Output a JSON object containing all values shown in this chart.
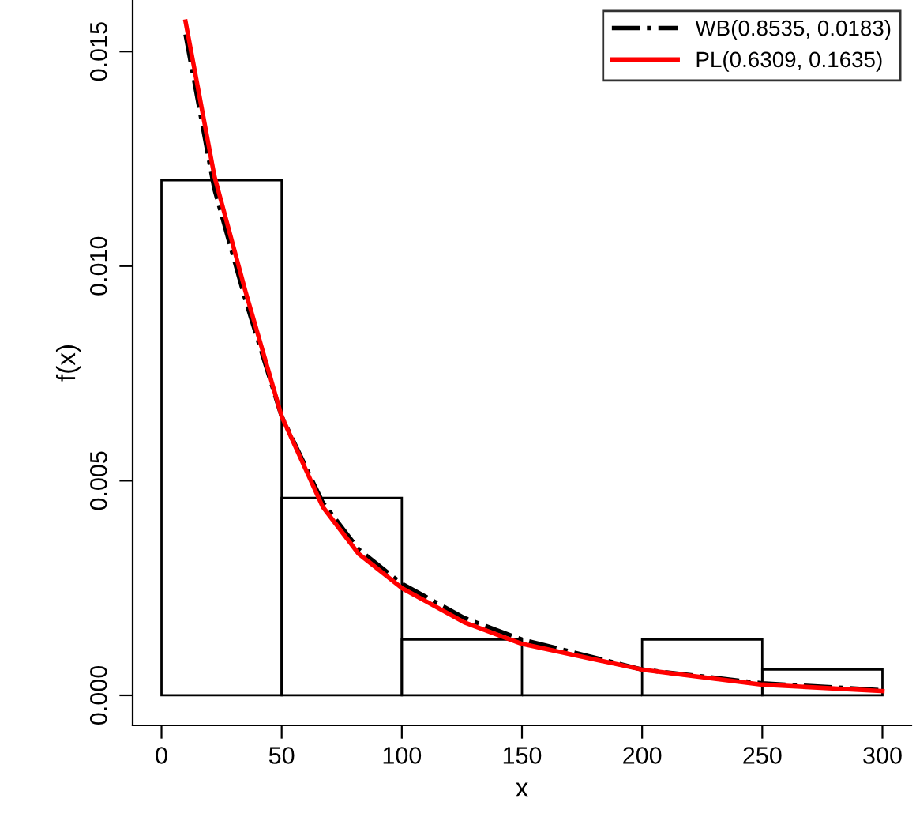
{
  "chart_data": {
    "type": "histogram",
    "xlabel": "x",
    "ylabel": "f(x)",
    "bins": [
      0,
      50,
      100,
      150,
      200,
      250,
      300
    ],
    "values": [
      0.012,
      0.0046,
      0.0013,
      0,
      0.0013,
      0.0006
    ],
    "color": "#000000",
    "xlim": [
      -12,
      312
    ],
    "ylim": [
      -0.0007,
      0.0162
    ],
    "xticks": [
      0,
      50,
      100,
      150,
      200,
      250,
      300
    ],
    "yticks": [
      {
        "value": 0,
        "label": "0.000"
      },
      {
        "value": 0.005,
        "label": "0.005"
      },
      {
        "value": 0.01,
        "label": "0.010"
      },
      {
        "value": 0.015,
        "label": "0.015"
      }
    ],
    "series": [
      {
        "name": "WB(0.8535, 0.0183)",
        "type": "line",
        "color": "#000000",
        "line_style": "dashdot",
        "x": [
          10,
          22,
          35,
          50,
          67,
          82,
          100,
          126,
          150,
          200,
          250,
          300
        ],
        "values": [
          0.0154,
          0.0118,
          0.0092,
          0.0065,
          0.0045,
          0.0034,
          0.0026,
          0.0018,
          0.0013,
          0.0006,
          0.00028,
          0.00012
        ]
      },
      {
        "name": "PL(0.6309, 0.1635)",
        "type": "line",
        "color": "#ff0000",
        "line_style": "solid",
        "x": [
          10,
          22,
          35,
          50,
          67,
          82,
          100,
          126,
          150,
          200,
          250,
          300
        ],
        "values": [
          0.0157,
          0.0121,
          0.0094,
          0.0065,
          0.0044,
          0.0033,
          0.0025,
          0.0017,
          0.0012,
          0.0006,
          0.00025,
          0.0001
        ]
      }
    ],
    "legend": "top right",
    "grid": false
  }
}
